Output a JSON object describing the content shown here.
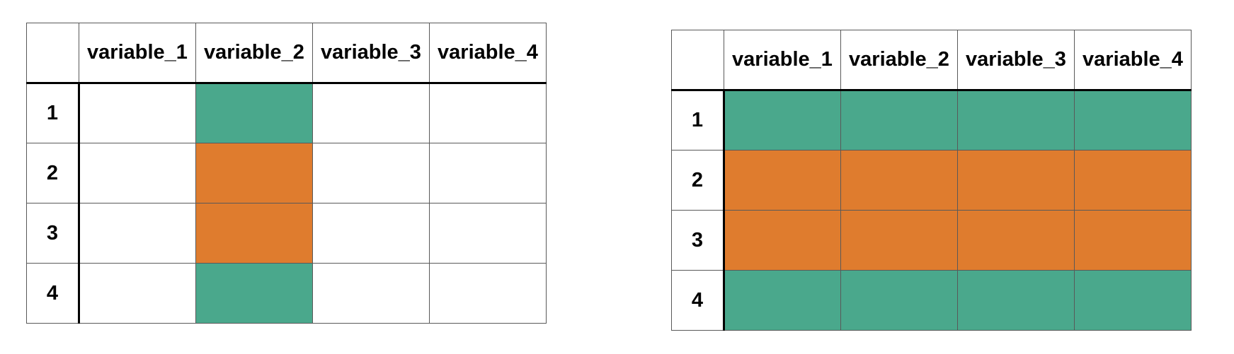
{
  "colors": {
    "teal": "#4AA88C",
    "orange": "#DF7C2E",
    "white": "#FFFFFF",
    "thin_border": "#595959",
    "thick_border": "#000000"
  },
  "chart_data": [
    {
      "type": "table",
      "name": "column-styled-table",
      "columns": [
        "",
        "variable_1",
        "variable_2",
        "variable_3",
        "variable_4"
      ],
      "row_labels": [
        "1",
        "2",
        "3",
        "4"
      ],
      "cell_fills": [
        [
          "white",
          "teal",
          "white",
          "white"
        ],
        [
          "white",
          "orange",
          "white",
          "white"
        ],
        [
          "white",
          "orange",
          "white",
          "white"
        ],
        [
          "white",
          "teal",
          "white",
          "white"
        ]
      ]
    },
    {
      "type": "table",
      "name": "fully-styled-table",
      "columns": [
        "",
        "variable_1",
        "variable_2",
        "variable_3",
        "variable_4"
      ],
      "row_labels": [
        "1",
        "2",
        "3",
        "4"
      ],
      "cell_fills": [
        [
          "teal",
          "teal",
          "teal",
          "teal"
        ],
        [
          "orange",
          "orange",
          "orange",
          "orange"
        ],
        [
          "orange",
          "orange",
          "orange",
          "orange"
        ],
        [
          "teal",
          "teal",
          "teal",
          "teal"
        ]
      ]
    }
  ]
}
